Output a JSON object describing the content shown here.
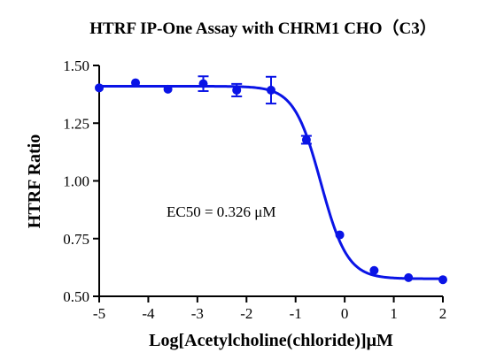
{
  "chart_data": {
    "type": "scatter",
    "title": "HTRF IP-One Assay with CHRM1 CHO（C3）",
    "xlabel": "Log[Acetylcholine(chloride)]μM",
    "ylabel": "HTRF Ratio",
    "xlim": [
      -5,
      2
    ],
    "ylim": [
      0.5,
      1.5
    ],
    "xticks": [
      -5,
      -4,
      -3,
      -2,
      -1,
      0,
      1,
      2
    ],
    "yticks": [
      0.5,
      0.75,
      1.0,
      1.25,
      1.5
    ],
    "xtick_labels": [
      "-5",
      "-4",
      "-3",
      "-2",
      "-1",
      "0",
      "1",
      "2"
    ],
    "ytick_labels": [
      "0.50",
      "0.75",
      "1.00",
      "1.25",
      "1.50"
    ],
    "annotation": "EC50 = 0.326 μM",
    "series": [
      {
        "color": "#0a14e6",
        "points": [
          {
            "x": -5.0,
            "y": 1.403,
            "err": 0.0
          },
          {
            "x": -4.26,
            "y": 1.425,
            "err": 0.0
          },
          {
            "x": -3.6,
            "y": 1.397,
            "err": 0.0
          },
          {
            "x": -2.88,
            "y": 1.421,
            "err": 0.032
          },
          {
            "x": -2.2,
            "y": 1.393,
            "err": 0.027
          },
          {
            "x": -1.5,
            "y": 1.393,
            "err": 0.058
          },
          {
            "x": -0.78,
            "y": 1.178,
            "err": 0.017
          },
          {
            "x": -0.1,
            "y": 0.766,
            "err": 0.0
          },
          {
            "x": 0.6,
            "y": 0.612,
            "err": 0.0
          },
          {
            "x": 1.3,
            "y": 0.581,
            "err": 0.0
          },
          {
            "x": 2.0,
            "y": 0.572,
            "err": 0.0
          }
        ],
        "fit": {
          "model": "four-parameter logistic",
          "top": 1.41,
          "bottom": 0.576,
          "log_ec50": -0.487,
          "hill_slope": -1.6
        }
      }
    ]
  }
}
